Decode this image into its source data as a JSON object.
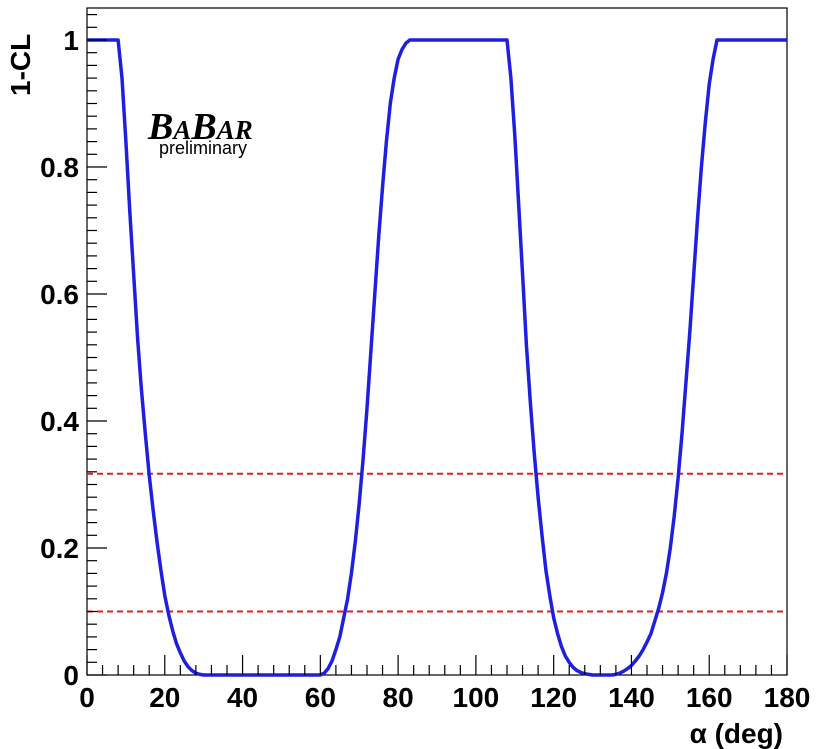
{
  "chart_data": {
    "type": "line",
    "title": "",
    "xlabel": "α (deg)",
    "ylabel": "1-CL",
    "xlim": [
      0,
      180
    ],
    "ylim": [
      0,
      1.05
    ],
    "x_ticks": [
      0,
      20,
      40,
      60,
      80,
      100,
      120,
      140,
      160,
      180
    ],
    "x_tick_labels": [
      "0",
      "20",
      "40",
      "60",
      "80",
      "100",
      "120",
      "140",
      "160",
      "180"
    ],
    "y_ticks": [
      0,
      0.2,
      0.4,
      0.6,
      0.8,
      1
    ],
    "y_tick_labels": [
      "0",
      "0.2",
      "0.4",
      "0.6",
      "0.8",
      "1"
    ],
    "grid": false,
    "series": [
      {
        "color": "#1f1fe0",
        "x": [
          0,
          8,
          9,
          10,
          11,
          12,
          13,
          14,
          15,
          16,
          17,
          18,
          19,
          20,
          21,
          22,
          23,
          24,
          25,
          26,
          27,
          28,
          29,
          30,
          60,
          61,
          62,
          63,
          64,
          65,
          66,
          67,
          68,
          69,
          70,
          71,
          72,
          73,
          74,
          75,
          76,
          77,
          78,
          79,
          80,
          81,
          82,
          83,
          108,
          109,
          110,
          111,
          112,
          113,
          114,
          115,
          116,
          117,
          118,
          119,
          120,
          121,
          122,
          123,
          124,
          125,
          126,
          127,
          128,
          129,
          130,
          131,
          132,
          133,
          134,
          135,
          136,
          137,
          138,
          139,
          140,
          141,
          142,
          143,
          144,
          145,
          146,
          147,
          148,
          149,
          150,
          151,
          152,
          153,
          154,
          155,
          156,
          157,
          158,
          159,
          160,
          161,
          162,
          180
        ],
        "y": [
          1,
          1,
          0.94,
          0.84,
          0.73,
          0.63,
          0.53,
          0.45,
          0.38,
          0.315,
          0.26,
          0.21,
          0.165,
          0.125,
          0.095,
          0.07,
          0.05,
          0.035,
          0.022,
          0.013,
          0.007,
          0.003,
          0.001,
          0,
          0,
          0.003,
          0.01,
          0.022,
          0.04,
          0.06,
          0.09,
          0.12,
          0.16,
          0.21,
          0.27,
          0.34,
          0.42,
          0.51,
          0.6,
          0.69,
          0.77,
          0.84,
          0.9,
          0.94,
          0.97,
          0.985,
          0.995,
          1,
          1,
          0.94,
          0.85,
          0.74,
          0.63,
          0.52,
          0.43,
          0.35,
          0.28,
          0.22,
          0.165,
          0.125,
          0.09,
          0.065,
          0.045,
          0.03,
          0.02,
          0.012,
          0.007,
          0.004,
          0.002,
          0.001,
          0,
          0,
          0,
          0,
          0,
          0,
          0.001,
          0.003,
          0.006,
          0.01,
          0.015,
          0.022,
          0.03,
          0.04,
          0.052,
          0.065,
          0.085,
          0.105,
          0.13,
          0.16,
          0.2,
          0.25,
          0.31,
          0.38,
          0.46,
          0.54,
          0.63,
          0.72,
          0.8,
          0.87,
          0.93,
          0.97,
          1,
          1
        ]
      }
    ],
    "reference_lines": [
      {
        "orientation": "horizontal",
        "y": 0.317,
        "color": "#e02020",
        "style": "dashed"
      },
      {
        "orientation": "horizontal",
        "y": 0.1,
        "color": "#e02020",
        "style": "dashed"
      }
    ],
    "logo": {
      "text": "BABAR",
      "subtitle": "preliminary"
    }
  }
}
